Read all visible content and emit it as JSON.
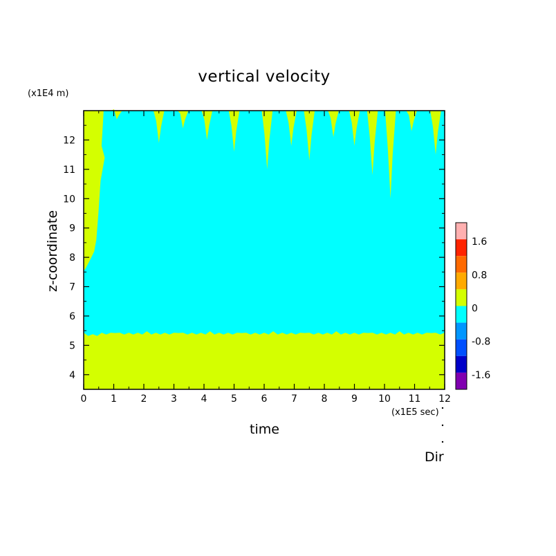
{
  "chart_data": {
    "type": "heatmap",
    "title": "vertical velocity",
    "xlabel": "time",
    "ylabel": "z-coordinate",
    "x_unit": "(x1E5 sec)",
    "y_unit": "(x1E4 m)",
    "xlim": [
      0,
      12
    ],
    "ylim": [
      3.5,
      13
    ],
    "x_ticks": [
      "0",
      "1",
      "2",
      "3",
      "4",
      "5",
      "6",
      "7",
      "8",
      "9",
      "10",
      "11",
      "12"
    ],
    "y_ticks": [
      "4",
      "5",
      "6",
      "7",
      "8",
      "9",
      "10",
      "11",
      "12"
    ],
    "colorbar": {
      "ticks": [
        "1.6",
        "0.8",
        "0",
        "-0.8",
        "-1.6"
      ],
      "levels": [
        {
          "range": [
            1.6,
            2.0
          ],
          "color": "#ffb0b0"
        },
        {
          "range": [
            1.2,
            1.6
          ],
          "color": "#ff2400"
        },
        {
          "range": [
            0.8,
            1.2
          ],
          "color": "#ff6a00"
        },
        {
          "range": [
            0.4,
            0.8
          ],
          "color": "#ffaa00"
        },
        {
          "range": [
            0.0,
            0.4
          ],
          "color": "#d4ff00"
        },
        {
          "range": [
            -0.4,
            0.0
          ],
          "color": "#00ffff"
        },
        {
          "range": [
            -0.8,
            -0.4
          ],
          "color": "#0096ff"
        },
        {
          "range": [
            -1.2,
            -0.8
          ],
          "color": "#0050ff"
        },
        {
          "range": [
            -1.6,
            -1.2
          ],
          "color": "#0000c8"
        },
        {
          "range": [
            -2.0,
            -1.6
          ],
          "color": "#8000b0"
        }
      ]
    },
    "regions": {
      "positive_low_layer_top_z": 5.4,
      "early_positive_column_end_time": 0.7,
      "upper_positive_streaks": [
        {
          "time": 1.1,
          "z_bottom": 12.7
        },
        {
          "time": 2.5,
          "z_bottom": 11.9
        },
        {
          "time": 3.3,
          "z_bottom": 12.4
        },
        {
          "time": 4.1,
          "z_bottom": 12.0
        },
        {
          "time": 5.0,
          "z_bottom": 11.6
        },
        {
          "time": 6.1,
          "z_bottom": 11.0
        },
        {
          "time": 6.9,
          "z_bottom": 11.8
        },
        {
          "time": 7.5,
          "z_bottom": 11.3
        },
        {
          "time": 8.3,
          "z_bottom": 12.1
        },
        {
          "time": 9.0,
          "z_bottom": 11.8
        },
        {
          "time": 9.6,
          "z_bottom": 10.8
        },
        {
          "time": 10.2,
          "z_bottom": 10.0
        },
        {
          "time": 10.9,
          "z_bottom": 12.3
        },
        {
          "time": 11.7,
          "z_bottom": 11.5
        }
      ]
    }
  },
  "annotations": {
    "dir_label": "Dir"
  }
}
